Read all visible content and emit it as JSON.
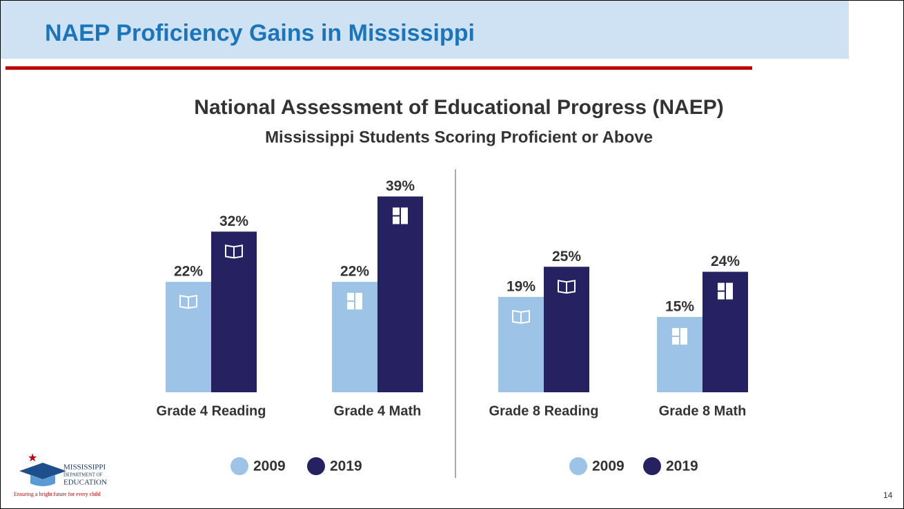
{
  "header": {
    "title": "NAEP Proficiency Gains in Mississippi"
  },
  "chart_data": {
    "type": "bar",
    "title": "National Assessment of Educational Progress (NAEP)",
    "subtitle": "Mississippi Students Scoring Proficient or Above",
    "categories": [
      "Grade 4 Reading",
      "Grade 4 Math",
      "Grade 8 Reading",
      "Grade 8 Math"
    ],
    "series": [
      {
        "name": "2009",
        "color": "#9dc3e6",
        "values": [
          22,
          22,
          19,
          15
        ],
        "value_labels": [
          "22%",
          "22%",
          "19%",
          "15%"
        ]
      },
      {
        "name": "2019",
        "color": "#262262",
        "values": [
          32,
          39,
          25,
          24
        ],
        "value_labels": [
          "32%",
          "39%",
          "25%",
          "24%"
        ]
      }
    ]
  },
  "logo": {
    "line1": "MISSISSIPPI",
    "line2": "DEPARTMENT OF",
    "line3": "EDUCATION",
    "tagline": "Ensuring a bright future for every child"
  },
  "page_number": "14"
}
